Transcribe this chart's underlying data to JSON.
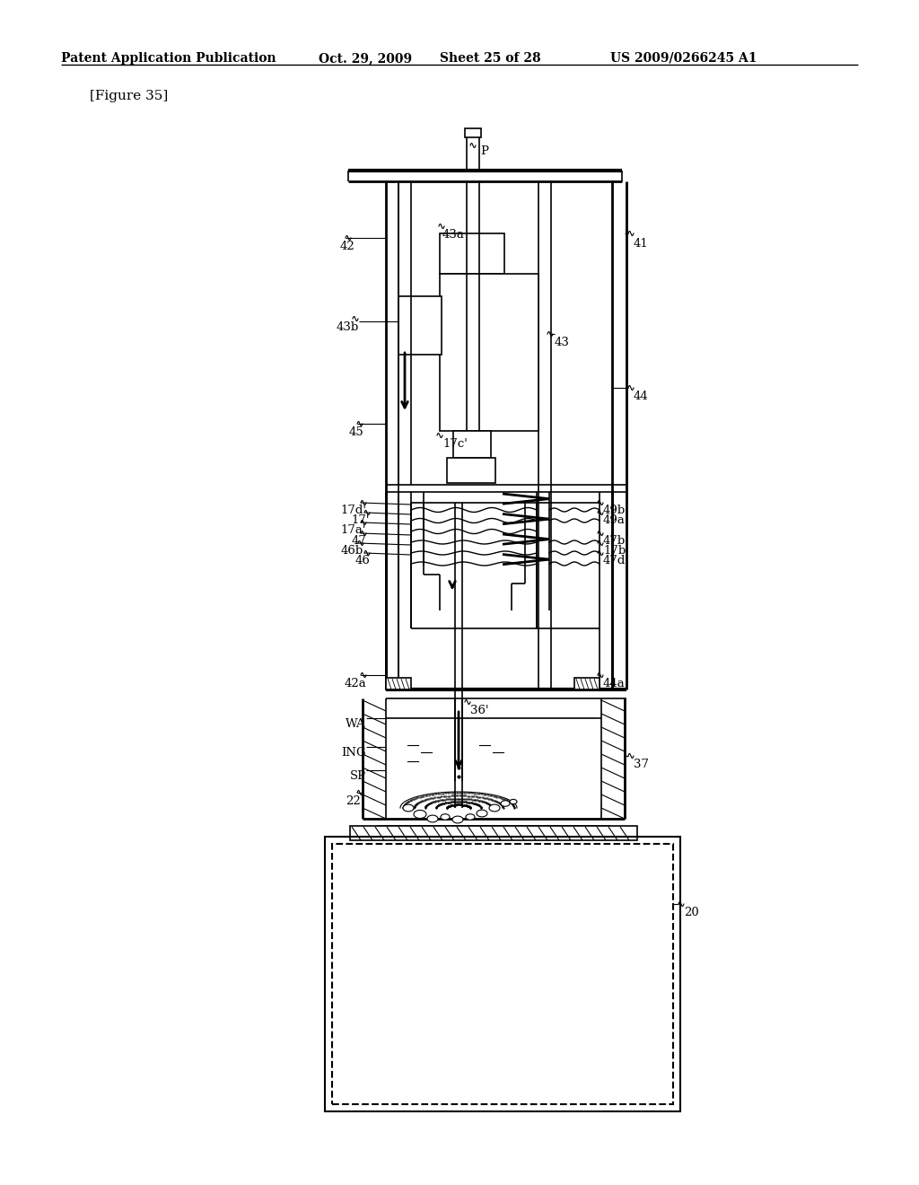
{
  "bg_color": "#ffffff",
  "line_color": "#000000",
  "header_text": "Patent Application Publication",
  "header_date": "Oct. 29, 2009",
  "header_sheet": "Sheet 25 of 28",
  "header_patent": "US 2009/0266245 A1",
  "figure_label": "[Figure 35]"
}
